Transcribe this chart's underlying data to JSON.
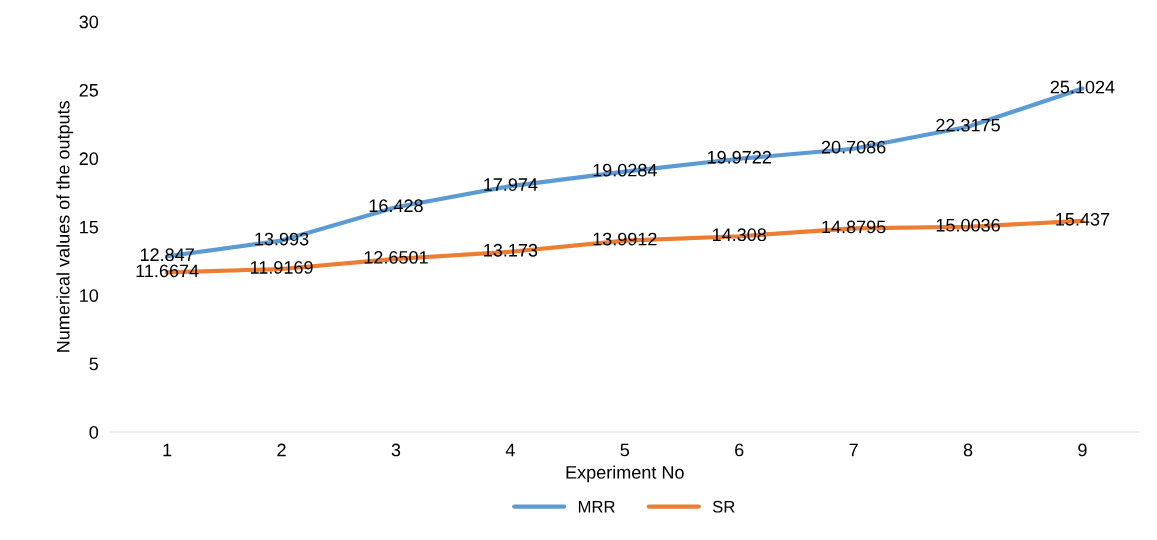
{
  "chart_data": {
    "type": "line",
    "xlabel": "Experiment No",
    "ylabel": "Numerical values of the outputs",
    "categories": [
      "1",
      "2",
      "3",
      "4",
      "5",
      "6",
      "7",
      "8",
      "9"
    ],
    "series": [
      {
        "name": "MRR",
        "color": "#5b9bd5",
        "values": [
          12.847,
          13.993,
          16.428,
          17.974,
          19.0284,
          19.9722,
          20.7086,
          22.3175,
          25.1024
        ]
      },
      {
        "name": "SR",
        "color": "#ed7d31",
        "values": [
          11.6674,
          11.9169,
          12.6501,
          13.173,
          13.9912,
          14.308,
          14.8795,
          15.0036,
          15.437
        ]
      }
    ],
    "ylim": [
      0,
      30
    ],
    "yticks": [
      0,
      5,
      10,
      15,
      20,
      25,
      30
    ],
    "data_labels": true,
    "legend": "bottom",
    "marker": "none",
    "line_style": "solid",
    "grid": false
  }
}
